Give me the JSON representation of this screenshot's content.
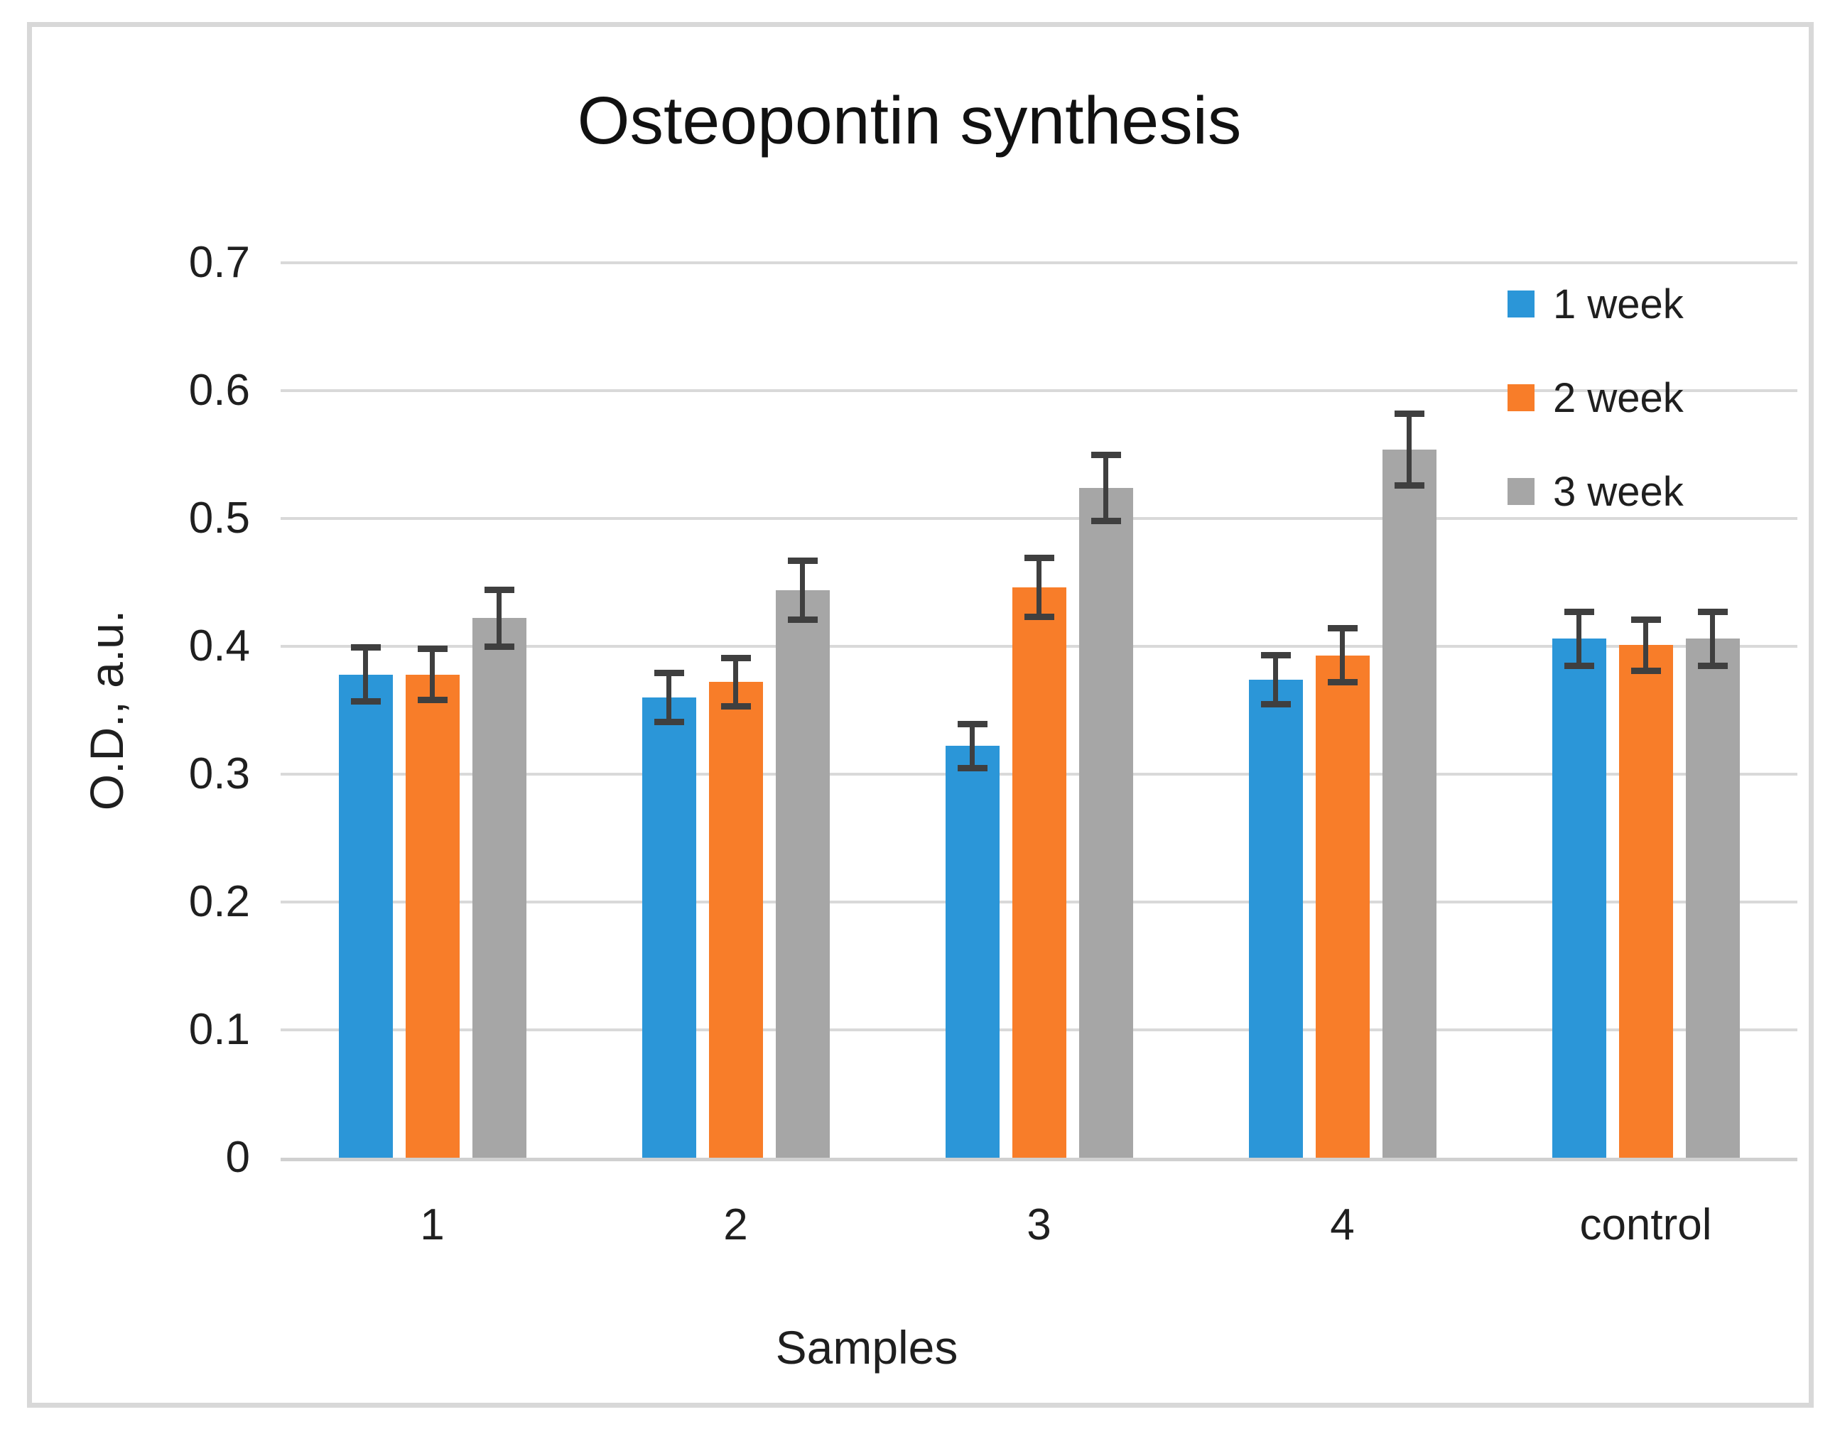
{
  "chart_data": {
    "type": "bar",
    "title": "Osteopontin synthesis",
    "xlabel": "Samples",
    "ylabel": "O.D., a.u.",
    "categories": [
      "1",
      "2",
      "3",
      "4",
      "control"
    ],
    "series": [
      {
        "name": "1 week",
        "color": "#2b96d8",
        "values": [
          0.378,
          0.36,
          0.322,
          0.374,
          0.406
        ],
        "errors": [
          0.021,
          0.019,
          0.017,
          0.019,
          0.021
        ]
      },
      {
        "name": "2 week",
        "color": "#f87d29",
        "values": [
          0.378,
          0.372,
          0.446,
          0.393,
          0.401
        ],
        "errors": [
          0.02,
          0.019,
          0.023,
          0.021,
          0.02
        ]
      },
      {
        "name": "3 week",
        "color": "#a6a6a6",
        "values": [
          0.422,
          0.444,
          0.524,
          0.554,
          0.406
        ],
        "errors": [
          0.022,
          0.023,
          0.026,
          0.028,
          0.021
        ]
      }
    ],
    "ylim": [
      0,
      0.7
    ],
    "ytick_step": 0.1,
    "ytick_labels": [
      "0",
      "0.1",
      "0.2",
      "0.3",
      "0.4",
      "0.5",
      "0.6",
      "0.7"
    ],
    "grid": true,
    "legend_position": "right",
    "error_bars": true,
    "colors": {
      "gridline": "#d9d9d9",
      "axis_line": "#d0d0d0",
      "error_bar": "#3f3f3f",
      "frame_border": "#d8d8d8",
      "text": "#1f1f1f"
    }
  }
}
